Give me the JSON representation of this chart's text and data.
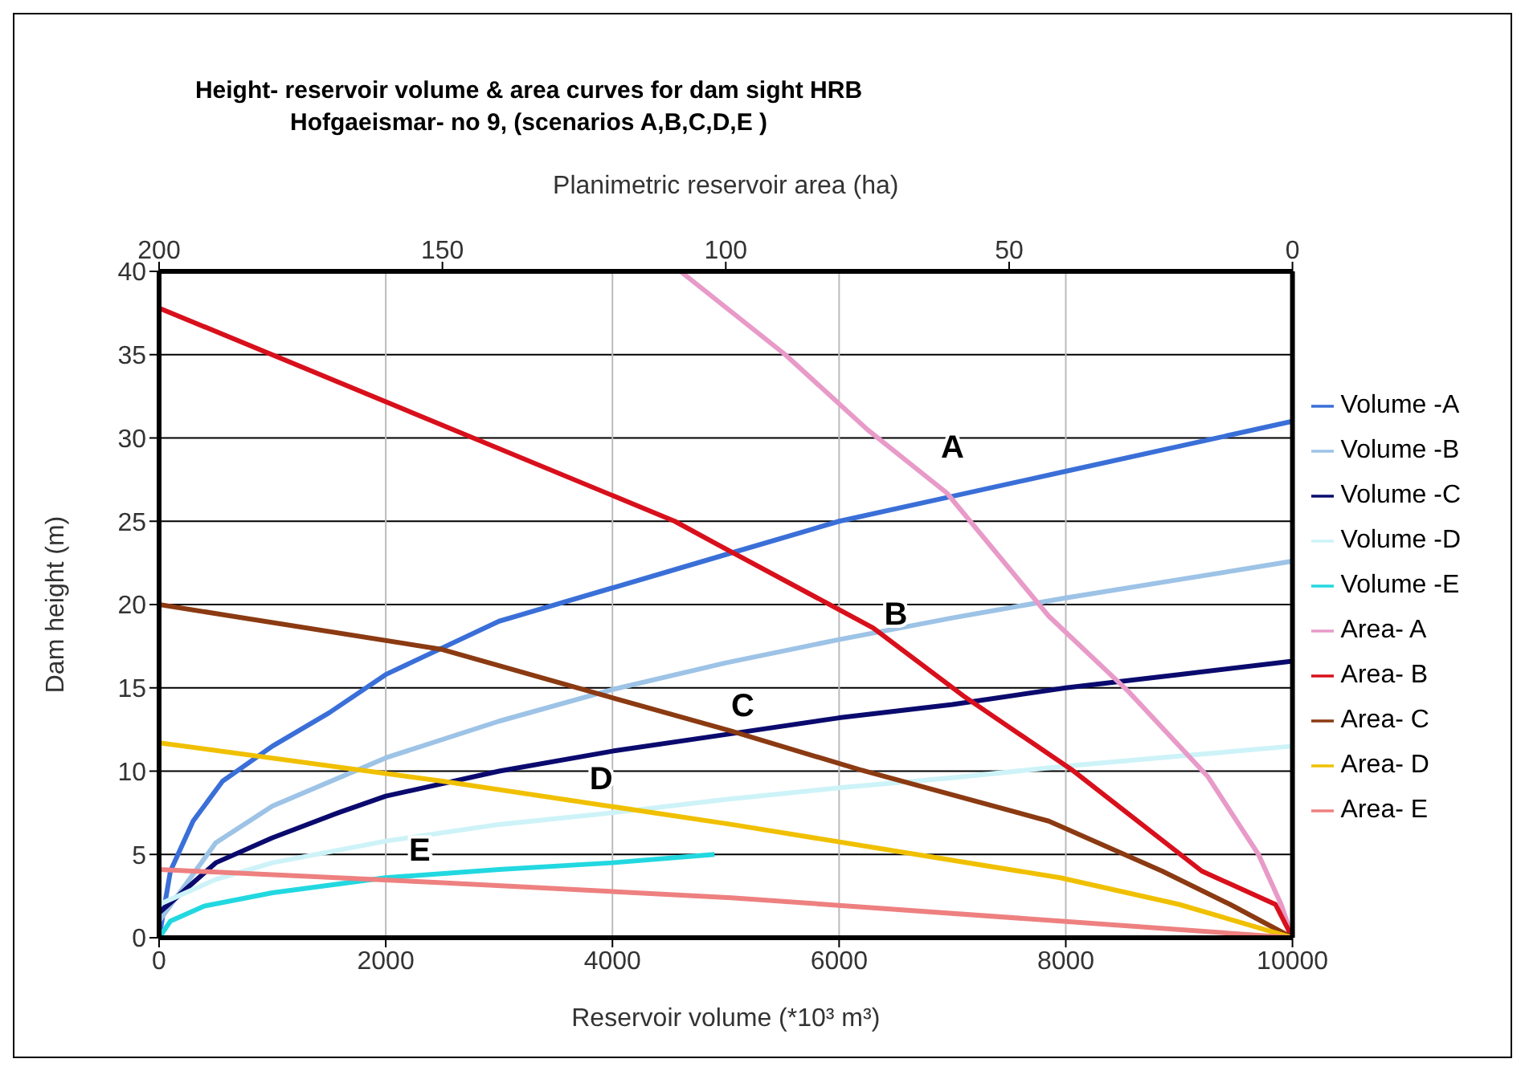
{
  "chart_data": {
    "type": "line",
    "title": "Height- reservoir volume & area curves for dam sight HRB",
    "subtitle": "Hofgaeismar- no 9, (scenarios A,B,C,D,E )",
    "xlabel": "Reservoir volume  (*10³ m³)",
    "x2label": "Planimetric reservoir area (ha)",
    "ylabel": "Dam height (m)",
    "xlim": [
      0,
      10000
    ],
    "xticks": [
      0,
      2000,
      4000,
      6000,
      8000,
      10000
    ],
    "x2lim": [
      200,
      0
    ],
    "x2ticks": [
      200,
      150,
      100,
      50,
      0
    ],
    "ylim": [
      0,
      40
    ],
    "yticks": [
      0,
      5,
      10,
      15,
      20,
      25,
      30,
      35,
      40
    ],
    "grid": true,
    "legend": "right",
    "marker": "none",
    "series": [
      {
        "name": "Volume -A",
        "color": "#3a6fd8",
        "x": [
          0,
          100,
          300,
          560,
          1000,
          1500,
          2000,
          3000,
          4000,
          5000,
          6000,
          7000,
          8000,
          9000,
          10000
        ],
        "values": [
          0,
          4,
          7,
          9.4,
          11.5,
          13.5,
          15.8,
          19,
          21,
          23,
          25,
          26.5,
          28,
          29.5,
          31
        ]
      },
      {
        "name": "Volume -B",
        "color": "#9dc3e6",
        "x": [
          0,
          500,
          1000,
          2000,
          3000,
          4000,
          5000,
          6000,
          7000,
          8000,
          9000,
          10000
        ],
        "values": [
          1,
          5.7,
          7.9,
          10.8,
          13,
          14.9,
          16.5,
          17.9,
          19.2,
          20.4,
          21.5,
          22.6
        ]
      },
      {
        "name": "Volume -C",
        "color": "#0a0a6e",
        "x": [
          0,
          500,
          1000,
          1580,
          2000,
          3000,
          4000,
          5000,
          6000,
          7000,
          8000,
          9000,
          10000
        ],
        "values": [
          1.5,
          4.5,
          6,
          7.5,
          8.5,
          10,
          11.2,
          12.2,
          13.2,
          14,
          15,
          15.8,
          16.6
        ]
      },
      {
        "name": "Volume -D",
        "color": "#cdf3f8",
        "x": [
          0,
          500,
          1000,
          2000,
          3000,
          4000,
          5000,
          6000,
          7000,
          8000,
          9000,
          10000
        ],
        "values": [
          2,
          3.5,
          4.5,
          5.8,
          6.8,
          7.5,
          8.3,
          9,
          9.6,
          10.3,
          10.9,
          11.5
        ]
      },
      {
        "name": "Volume -E",
        "color": "#22d8e0",
        "x": [
          0,
          100,
          400,
          1000,
          2000,
          3000,
          4000,
          4900
        ],
        "values": [
          0,
          1,
          1.9,
          2.7,
          3.6,
          4.1,
          4.5,
          5
        ]
      },
      {
        "name": "Area- A",
        "color": "#e89ac8",
        "axis": "x2",
        "x": [
          108,
          89.5,
          75,
          61,
          43,
          29,
          15,
          6,
          2,
          0
        ],
        "values": [
          40,
          35,
          30.5,
          26.7,
          19.3,
          14.8,
          9.7,
          5,
          2,
          0
        ]
      },
      {
        "name": "Area- B",
        "color": "#d8101c",
        "axis": "x2",
        "x": [
          200,
          109,
          102,
          74,
          58,
          39,
          16,
          3,
          0
        ],
        "values": [
          37.8,
          25,
          23.7,
          18.6,
          14.5,
          10.1,
          4,
          2,
          0
        ]
      },
      {
        "name": "Area- C",
        "color": "#8b3a12",
        "axis": "x2",
        "x": [
          200,
          150,
          121,
          99,
          76.5,
          43,
          23,
          11,
          0
        ],
        "values": [
          20,
          17.3,
          14.5,
          12.4,
          10.1,
          7,
          4,
          2,
          0
        ]
      },
      {
        "name": "Area- D",
        "color": "#f0c000",
        "axis": "x2",
        "x": [
          200,
          150,
          99,
          41,
          20,
          0
        ],
        "values": [
          11.7,
          9.4,
          6.8,
          3.6,
          2,
          0
        ]
      },
      {
        "name": "Area- E",
        "color": "#ee8080",
        "axis": "x2",
        "x": [
          200,
          150,
          99,
          41,
          0
        ],
        "values": [
          4.1,
          3.3,
          2.4,
          1,
          0
        ]
      }
    ],
    "annotations": [
      "A",
      "B",
      "C",
      "D",
      "E"
    ]
  }
}
